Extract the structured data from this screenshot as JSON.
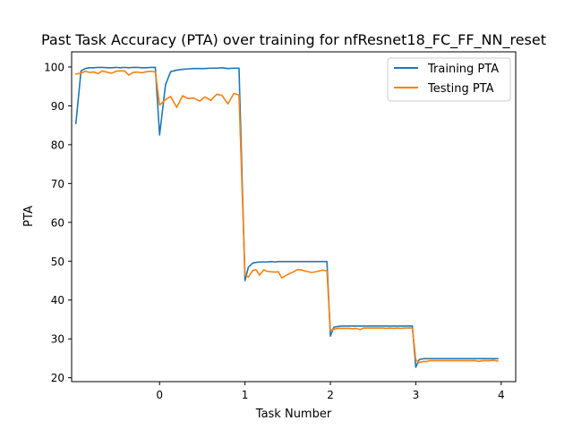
{
  "chart_data": {
    "type": "line",
    "title": "Past Task Accuracy (PTA) over training for nfResnet18_FC_FF_NN_reset",
    "xlabel": "Task Number",
    "ylabel": "PTA",
    "xlim": [
      -1.03,
      4.17
    ],
    "ylim": [
      19.0,
      103.9
    ],
    "xticks": [
      0,
      1,
      2,
      3,
      4
    ],
    "yticks": [
      20,
      30,
      40,
      50,
      60,
      70,
      80,
      90,
      100
    ],
    "grid": false,
    "legend_position": "top-right",
    "series": [
      {
        "name": "Training PTA",
        "color": "#1f77b4",
        "x": [
          -0.98,
          -0.92,
          -0.87,
          -0.82,
          -0.77,
          -0.72,
          -0.67,
          -0.61,
          -0.56,
          -0.51,
          -0.46,
          -0.41,
          -0.36,
          -0.31,
          -0.26,
          -0.21,
          -0.15,
          -0.1,
          -0.05,
          0.0,
          0.07,
          0.13,
          0.2,
          0.27,
          0.33,
          0.4,
          0.47,
          0.53,
          0.6,
          0.67,
          0.73,
          0.8,
          0.87,
          0.93,
          1.0,
          1.04,
          1.09,
          1.13,
          1.17,
          1.22,
          1.26,
          1.3,
          1.35,
          1.39,
          1.43,
          1.48,
          1.52,
          1.57,
          1.61,
          1.65,
          1.7,
          1.74,
          1.78,
          1.83,
          1.87,
          1.91,
          1.96,
          2.0,
          2.04,
          2.09,
          2.13,
          2.17,
          2.22,
          2.26,
          2.3,
          2.35,
          2.39,
          2.43,
          2.48,
          2.52,
          2.57,
          2.61,
          2.65,
          2.7,
          2.74,
          2.78,
          2.83,
          2.87,
          2.91,
          2.96,
          3.0,
          3.04,
          3.09,
          3.13,
          3.17,
          3.22,
          3.26,
          3.3,
          3.35,
          3.39,
          3.43,
          3.48,
          3.52,
          3.57,
          3.61,
          3.65,
          3.7,
          3.74,
          3.78,
          3.83,
          3.87,
          3.91,
          3.96
        ],
        "values": [
          85.5,
          99.0,
          99.6,
          99.8,
          99.8,
          99.9,
          99.9,
          99.8,
          99.8,
          99.9,
          99.8,
          99.9,
          99.8,
          99.9,
          99.9,
          99.8,
          99.8,
          99.9,
          99.9,
          82.5,
          95.5,
          98.8,
          99.2,
          99.4,
          99.5,
          99.6,
          99.6,
          99.6,
          99.7,
          99.7,
          99.8,
          99.6,
          99.7,
          99.7,
          45.0,
          48.5,
          49.5,
          49.7,
          49.8,
          49.8,
          49.8,
          49.9,
          49.8,
          49.9,
          49.9,
          49.9,
          49.9,
          49.9,
          49.9,
          49.9,
          49.9,
          49.9,
          49.9,
          49.9,
          49.9,
          49.9,
          49.9,
          30.7,
          33.0,
          33.2,
          33.3,
          33.3,
          33.3,
          33.3,
          33.3,
          33.3,
          33.3,
          33.3,
          33.3,
          33.3,
          33.3,
          33.3,
          33.3,
          33.3,
          33.3,
          33.3,
          33.3,
          33.3,
          33.3,
          33.3,
          22.7,
          24.7,
          24.9,
          24.9,
          24.9,
          24.9,
          24.9,
          24.9,
          24.9,
          24.9,
          24.9,
          24.9,
          24.9,
          24.9,
          24.9,
          24.9,
          24.9,
          24.9,
          24.9,
          24.9,
          24.9,
          24.9,
          24.9
        ]
      },
      {
        "name": "Testing PTA",
        "color": "#ff7f0e",
        "x": [
          -0.98,
          -0.92,
          -0.87,
          -0.82,
          -0.77,
          -0.72,
          -0.67,
          -0.61,
          -0.56,
          -0.51,
          -0.46,
          -0.41,
          -0.36,
          -0.31,
          -0.26,
          -0.21,
          -0.15,
          -0.1,
          -0.05,
          0.0,
          0.07,
          0.13,
          0.2,
          0.27,
          0.33,
          0.4,
          0.47,
          0.53,
          0.6,
          0.67,
          0.73,
          0.8,
          0.87,
          0.93,
          1.0,
          1.04,
          1.09,
          1.13,
          1.17,
          1.22,
          1.26,
          1.3,
          1.35,
          1.39,
          1.43,
          1.48,
          1.52,
          1.57,
          1.61,
          1.65,
          1.7,
          1.74,
          1.78,
          1.83,
          1.87,
          1.91,
          1.96,
          2.0,
          2.04,
          2.09,
          2.13,
          2.17,
          2.22,
          2.26,
          2.3,
          2.35,
          2.39,
          2.43,
          2.48,
          2.52,
          2.57,
          2.61,
          2.65,
          2.7,
          2.74,
          2.78,
          2.83,
          2.87,
          2.91,
          2.96,
          3.0,
          3.04,
          3.09,
          3.13,
          3.17,
          3.22,
          3.26,
          3.3,
          3.35,
          3.39,
          3.43,
          3.48,
          3.52,
          3.57,
          3.61,
          3.65,
          3.7,
          3.74,
          3.78,
          3.83,
          3.87,
          3.91,
          3.96
        ],
        "values": [
          98.2,
          98.4,
          98.9,
          98.6,
          98.7,
          98.3,
          99.0,
          98.6,
          98.4,
          98.9,
          99.0,
          99.0,
          97.9,
          98.6,
          98.7,
          98.5,
          98.8,
          98.9,
          98.7,
          90.2,
          91.6,
          92.4,
          89.6,
          92.6,
          91.9,
          92.0,
          91.2,
          92.3,
          91.4,
          93.0,
          92.7,
          90.5,
          93.2,
          92.8,
          46.5,
          45.9,
          47.6,
          47.8,
          46.4,
          47.8,
          47.4,
          47.3,
          47.2,
          47.3,
          45.7,
          46.3,
          46.8,
          47.3,
          47.8,
          47.8,
          47.5,
          47.3,
          47.1,
          47.3,
          47.5,
          47.7,
          47.5,
          32.2,
          32.5,
          32.7,
          32.7,
          32.7,
          32.7,
          32.6,
          32.7,
          32.4,
          32.8,
          32.8,
          32.8,
          32.8,
          32.8,
          32.8,
          32.7,
          32.8,
          32.7,
          32.8,
          32.7,
          32.8,
          32.8,
          32.8,
          24.6,
          23.9,
          24.2,
          24.2,
          24.4,
          24.4,
          24.4,
          24.4,
          24.4,
          24.4,
          24.4,
          24.4,
          24.4,
          24.4,
          24.4,
          24.4,
          24.4,
          24.2,
          24.4,
          24.4,
          24.4,
          24.5,
          24.3
        ]
      }
    ]
  }
}
